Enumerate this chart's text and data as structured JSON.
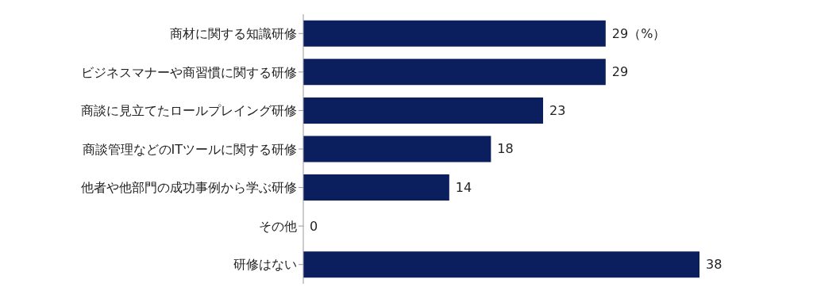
{
  "chart_data": {
    "type": "bar",
    "orientation": "horizontal",
    "categories": [
      "商材に関する知識研修",
      "ビジネスマナーや商習慣に関する研修",
      "商談に見立てたロールプレイング研修",
      "商談管理などのITツールに関する研修",
      "他者や他部門の成功事例から学ぶ研修",
      "その他",
      "研修はない"
    ],
    "values": [
      29,
      29,
      23,
      18,
      14,
      0,
      38
    ],
    "value_labels": [
      "29（%）",
      "29",
      "23",
      "18",
      "14",
      "0",
      "38"
    ],
    "color": "#0b1f5e",
    "grid": false
  }
}
